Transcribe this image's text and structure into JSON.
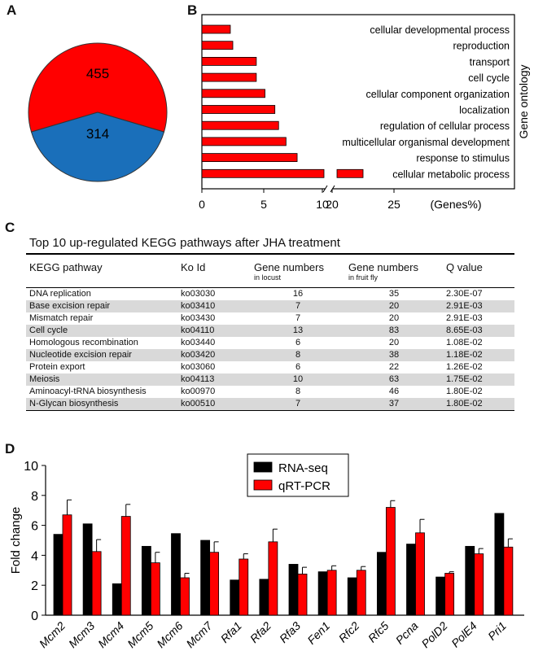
{
  "panels": {
    "a": "A",
    "b": "B",
    "c": "C",
    "d": "D"
  },
  "colors": {
    "red": "#ff0000",
    "blue": "#1a6fba",
    "black": "#000000",
    "shade": "#d9d9d9"
  },
  "chart_data": [
    {
      "type": "pie",
      "labels": [
        "455",
        "314"
      ],
      "values": [
        455,
        314
      ],
      "colors": [
        "#ff0000",
        "#1a6fba"
      ]
    },
    {
      "type": "bar",
      "orientation": "horizontal",
      "axis_break": [
        10,
        20
      ],
      "xlabel": "(Genes%)",
      "ylabel": "Gene ontology",
      "xticks": [
        "0",
        "5",
        "10",
        "20",
        "25"
      ],
      "categories": [
        "cellular developmental process",
        "reproduction",
        "transport",
        "cell cycle",
        "cellular component organization",
        "localization",
        "regulation of cellular process",
        "multicellular organismal development",
        "response to stimulus",
        "cellular metabolic process"
      ],
      "values": [
        2.3,
        2.5,
        4.4,
        4.4,
        5.1,
        5.9,
        6.2,
        6.8,
        7.7,
        22.5
      ],
      "color": "#ff0000"
    },
    {
      "type": "table",
      "title": "Top 10 up-regulated KEGG pathways after JHA treatment",
      "columns": [
        {
          "label": "KEGG pathway",
          "sub": ""
        },
        {
          "label": "Ko Id",
          "sub": ""
        },
        {
          "label": "Gene numbers",
          "sub": "in locust"
        },
        {
          "label": "Gene numbers",
          "sub": "in fruit fly"
        },
        {
          "label": "Q value",
          "sub": ""
        }
      ],
      "rows": [
        [
          "DNA replication",
          "ko03030",
          "16",
          "35",
          "2.30E-07"
        ],
        [
          "Base excision repair",
          "ko03410",
          "7",
          "20",
          "2.91E-03"
        ],
        [
          "Mismatch repair",
          "ko03430",
          "7",
          "20",
          "2.91E-03"
        ],
        [
          "Cell cycle",
          "ko04110",
          "13",
          "83",
          "8.65E-03"
        ],
        [
          "Homologous recombination",
          "ko03440",
          "6",
          "20",
          "1.08E-02"
        ],
        [
          "Nucleotide excision repair",
          "ko03420",
          "8",
          "38",
          "1.18E-02"
        ],
        [
          "Protein export",
          "ko03060",
          "6",
          "22",
          "1.26E-02"
        ],
        [
          "Meiosis",
          "ko04113",
          "10",
          "63",
          "1.75E-02"
        ],
        [
          "Aminoacyl-tRNA biosynthesis",
          "ko00970",
          "8",
          "46",
          "1.80E-02"
        ],
        [
          "N-Glycan biosynthesis",
          "ko00510",
          "7",
          "37",
          "1.80E-02"
        ]
      ]
    },
    {
      "type": "bar",
      "ylabel": "Fold change",
      "ylim": [
        0,
        10
      ],
      "yticks": [
        0,
        2,
        4,
        6,
        8,
        10
      ],
      "legend": "top-center",
      "categories": [
        "Mcm2",
        "Mcm3",
        "Mcm4",
        "Mcm5",
        "Mcm6",
        "Mcm7",
        "Rfa1",
        "Rfa2",
        "Rfa3",
        "Fen1",
        "Rfc2",
        "Rfc5",
        "Pcna",
        "PolD2",
        "PolE4",
        "Pri1"
      ],
      "series": [
        {
          "name": "RNA-seq",
          "color": "#000000",
          "values": [
            5.4,
            6.1,
            2.1,
            4.6,
            5.45,
            5.0,
            2.35,
            2.4,
            3.4,
            2.9,
            2.5,
            4.2,
            4.75,
            2.55,
            4.6,
            6.8
          ]
        },
        {
          "name": "qRT-PCR",
          "color": "#ff0000",
          "values": [
            6.7,
            4.25,
            6.6,
            3.5,
            2.5,
            4.2,
            3.75,
            4.9,
            2.75,
            3.0,
            3.0,
            7.2,
            5.5,
            2.8,
            4.1,
            4.55
          ],
          "errors": [
            1.0,
            0.8,
            0.8,
            0.7,
            0.3,
            0.7,
            0.35,
            0.85,
            0.45,
            0.3,
            0.25,
            0.45,
            0.9,
            0.1,
            0.35,
            0.55
          ]
        }
      ]
    }
  ]
}
